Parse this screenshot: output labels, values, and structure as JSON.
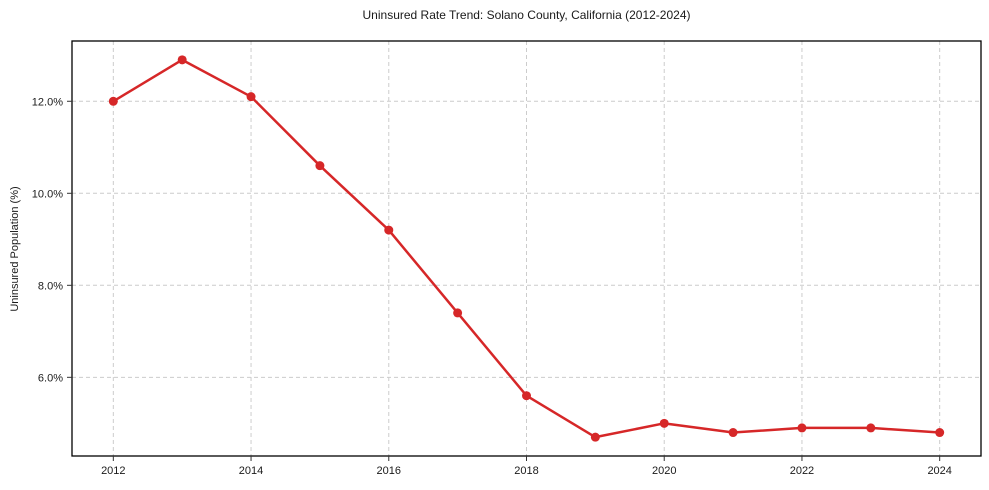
{
  "chart_data": {
    "type": "line",
    "title": "Uninsured Rate Trend: Solano County, California (2012-2024)",
    "xlabel": "",
    "ylabel": "Uninsured Population (%)",
    "x": [
      2012,
      2013,
      2014,
      2015,
      2016,
      2017,
      2018,
      2019,
      2020,
      2021,
      2022,
      2023,
      2024
    ],
    "series": [
      {
        "name": "Uninsured Rate",
        "values": [
          12.0,
          12.9,
          12.1,
          10.6,
          9.2,
          7.4,
          5.6,
          4.7,
          5.0,
          4.8,
          4.9,
          4.9,
          4.8
        ]
      }
    ],
    "xlim": [
      2011.4,
      2024.6
    ],
    "ylim": [
      4.29,
      13.31
    ],
    "xticks": [
      2012,
      2014,
      2016,
      2018,
      2020,
      2022,
      2024
    ],
    "xtick_labels": [
      "2012",
      "2014",
      "2016",
      "2018",
      "2020",
      "2022",
      "2024"
    ],
    "yticks": [
      6.0,
      8.0,
      10.0,
      12.0
    ],
    "ytick_labels": [
      "6.0%",
      "8.0%",
      "10.0%",
      "12.0%"
    ],
    "grid": true,
    "legend_position": "none",
    "line_color": "#d62728",
    "marker": "circle",
    "grid_color": "#cccccc",
    "frame_color": "#000000",
    "tick_color": "#333333"
  }
}
